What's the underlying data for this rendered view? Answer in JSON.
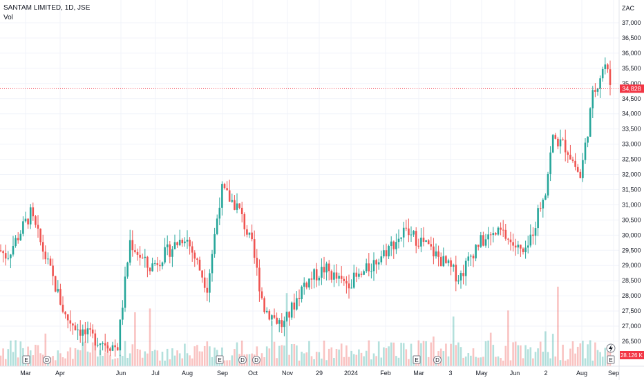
{
  "header": {
    "title": "SANTAM LIMITED, 1D, JSE",
    "vol_label": "Vol"
  },
  "currency_label": "ZAC",
  "colors": {
    "up": "#26a69a",
    "down": "#ef5350",
    "last_price": "#f23645",
    "grid": "#f0f3fa"
  },
  "chart_data": {
    "type": "candlestick",
    "title": "SANTAM LIMITED, 1D, JSE",
    "ylim": [
      26000,
      37300
    ],
    "y_ticks": [
      "26,500",
      "27,000",
      "27,500",
      "28,000",
      "28,500",
      "29,000",
      "29,500",
      "30,000",
      "30,500",
      "31,000",
      "31,500",
      "32,000",
      "32,500",
      "33,000",
      "33,500",
      "34,000",
      "34,500",
      "35,000",
      "35,500",
      "36,000",
      "36,500",
      "37,000"
    ],
    "x_ticks": [
      "Mar",
      "Apr",
      "Jun",
      "Jul",
      "Aug",
      "Sep",
      "Oct",
      "Nov",
      "29",
      "2024",
      "Feb",
      "Mar",
      "3",
      "May",
      "Jun",
      "2",
      "Aug",
      "Sep"
    ],
    "last_price": 34828,
    "last_price_label": "34,828",
    "last_volume_label": "28.126 K",
    "price_path": [
      [
        "Feb",
        29500
      ],
      [
        "Mar",
        29300
      ],
      [
        "Mar",
        30700
      ],
      [
        "Apr",
        29000
      ],
      [
        "Apr",
        27300
      ],
      [
        "May",
        26700
      ],
      [
        "Jun",
        26300
      ],
      [
        "Jun",
        29800
      ],
      [
        "Jul",
        28900
      ],
      [
        "Jul",
        29400
      ],
      [
        "Aug",
        30000
      ],
      [
        "Aug",
        28300
      ],
      [
        "Sep",
        31500
      ],
      [
        "Sep",
        30900
      ],
      [
        "Oct",
        29600
      ],
      [
        "Oct",
        27600
      ],
      [
        "Nov",
        27000
      ],
      [
        "Nov",
        28400
      ],
      [
        "29",
        28900
      ],
      [
        "2024",
        28400
      ],
      [
        "Feb",
        28600
      ],
      [
        "Feb",
        29300
      ],
      [
        "Mar",
        30100
      ],
      [
        "Mar",
        29800
      ],
      [
        "Apr",
        28600
      ],
      [
        "May",
        29700
      ],
      [
        "May",
        30100
      ],
      [
        "Jun",
        29300
      ],
      [
        "2",
        31600
      ],
      [
        "Jul",
        33200
      ],
      [
        "Jul",
        32900
      ],
      [
        "Aug",
        31900
      ],
      [
        "Aug",
        34600
      ],
      [
        "Sep",
        35700
      ],
      [
        "Sep",
        34828
      ]
    ],
    "events": [
      {
        "type": "earnings",
        "label": "E"
      },
      {
        "type": "dividend",
        "label": "D"
      },
      {
        "type": "earnings",
        "label": "E"
      },
      {
        "type": "dividend",
        "label": "D"
      },
      {
        "type": "dividend",
        "label": "D"
      },
      {
        "type": "earnings",
        "label": "E"
      },
      {
        "type": "dividend",
        "label": "D"
      },
      {
        "type": "earnings",
        "label": "E"
      }
    ]
  }
}
